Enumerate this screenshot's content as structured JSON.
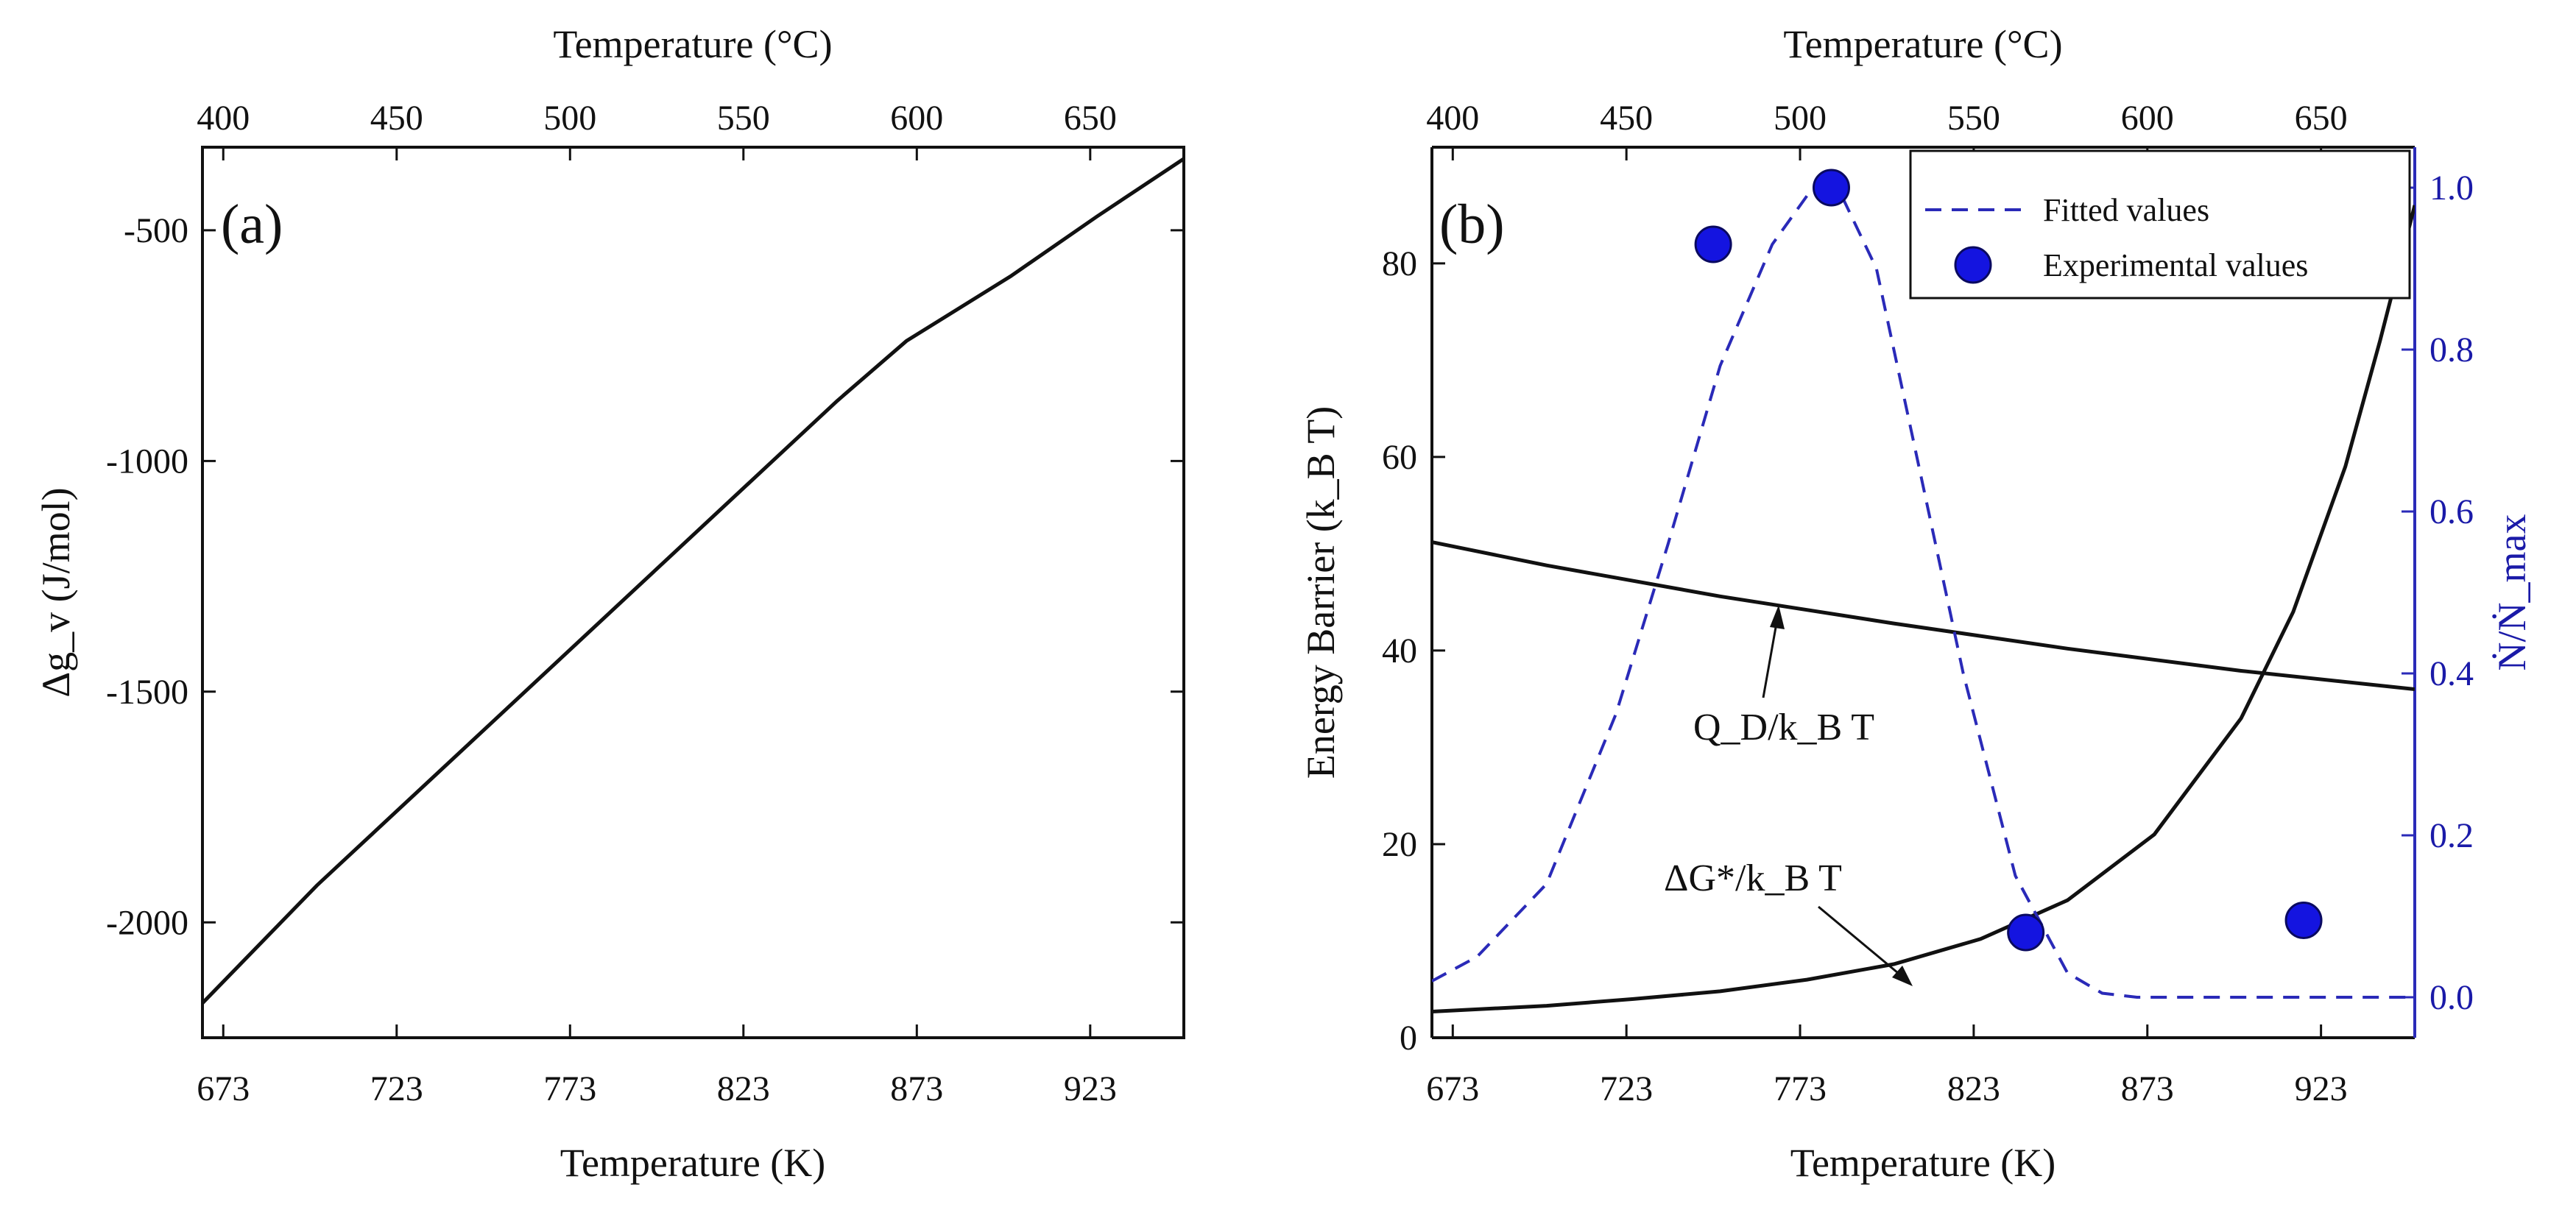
{
  "figure": {
    "panels": {
      "a": {
        "label": "(a)",
        "top_axis_title": "Temperature (°C)",
        "bottom_axis_title": "Temperature (K)",
        "ylabel": "Δg_v (J/mol)"
      },
      "b": {
        "label": "(b)",
        "top_axis_title": "Temperature (°C)",
        "bottom_axis_title": "Temperature (K)",
        "ylabel_left": "Energy Barrier (k_B T)",
        "ylabel_right": "Ṅ/Ṅ_max",
        "legend": {
          "fitted": "Fitted values",
          "experimental": "Experimental values"
        },
        "annotations": {
          "qd": "Q_D/k_B T",
          "dg": "ΔG*/k_B T"
        }
      }
    }
  },
  "chart_data": [
    {
      "panel": "a",
      "type": "line",
      "title": "",
      "xlabel": "Temperature (K)",
      "x2label": "Temperature (°C)",
      "ylabel": "Δg_v (J/mol)",
      "xlim": [
        667,
        950
      ],
      "ylim": [
        -2250,
        -320
      ],
      "xticks": [
        673,
        723,
        773,
        823,
        873,
        923
      ],
      "x2ticks": [
        400,
        450,
        500,
        550,
        600,
        650
      ],
      "yticks": [
        -2000,
        -1500,
        -1000,
        -500
      ],
      "series": [
        {
          "name": "Δg_v",
          "color": "#111111",
          "x": [
            667,
            700,
            750,
            800,
            850,
            870,
            900,
            925,
            950
          ],
          "y": [
            -2175,
            -1920,
            -1570,
            -1220,
            -870,
            -740,
            -600,
            -470,
            -345
          ]
        }
      ]
    },
    {
      "panel": "b",
      "type": "line",
      "title": "",
      "xlabel": "Temperature (K)",
      "x2label": "Temperature (°C)",
      "ylabel": "Energy Barrier (k_B T)",
      "y2label": "Ṅ/Ṅ_max",
      "xlim": [
        667,
        950
      ],
      "ylim": [
        0,
        92
      ],
      "y2lim": [
        -0.05,
        1.05
      ],
      "xticks": [
        673,
        723,
        773,
        823,
        873,
        923
      ],
      "x2ticks": [
        400,
        450,
        500,
        550,
        600,
        650
      ],
      "yticks": [
        0,
        20,
        40,
        60,
        80
      ],
      "y2ticks": [
        0.0,
        0.2,
        0.4,
        0.6,
        0.8,
        1.0
      ],
      "series": [
        {
          "name": "Q_D/k_B T",
          "axis": "left",
          "color": "#111111",
          "x": [
            667,
            700,
            750,
            800,
            850,
            900,
            950
          ],
          "y": [
            51.2,
            48.8,
            45.6,
            42.8,
            40.2,
            37.9,
            36.0
          ]
        },
        {
          "name": "ΔG*/k_B T",
          "axis": "left",
          "color": "#111111",
          "x": [
            667,
            700,
            725,
            750,
            775,
            800,
            825,
            850,
            875,
            900,
            915,
            930,
            940,
            950
          ],
          "y": [
            2.7,
            3.3,
            4.0,
            4.8,
            6.0,
            7.6,
            10.2,
            14.2,
            21.0,
            33.0,
            44.0,
            59.0,
            72.0,
            86.0
          ]
        },
        {
          "name": "Fitted values",
          "axis": "right",
          "color": "#2a2ab8",
          "dashed": true,
          "x": [
            667,
            680,
            700,
            720,
            735,
            750,
            765,
            775,
            785,
            795,
            805,
            820,
            835,
            850,
            860,
            870,
            900,
            950
          ],
          "y": [
            0.02,
            0.05,
            0.14,
            0.35,
            0.56,
            0.78,
            0.93,
            0.99,
            0.99,
            0.9,
            0.7,
            0.4,
            0.15,
            0.03,
            0.005,
            0.0,
            0.0,
            0.0
          ]
        },
        {
          "name": "Experimental values",
          "axis": "right",
          "type": "scatter",
          "color": "#1414e0",
          "x": [
            748,
            782,
            838,
            918
          ],
          "y": [
            0.93,
            1.0,
            0.08,
            0.095
          ]
        }
      ]
    }
  ]
}
